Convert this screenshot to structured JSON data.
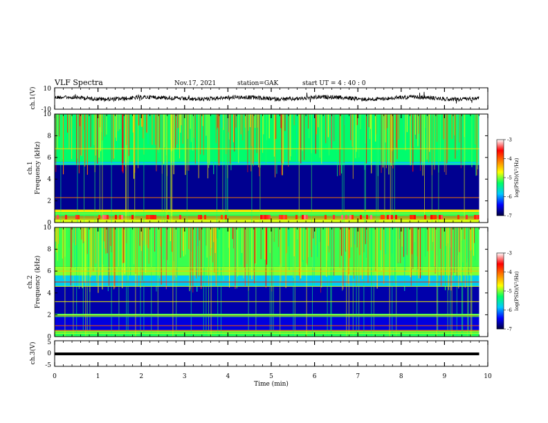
{
  "header": {
    "title": "VLF Spectra",
    "date": "Nov.17, 2021",
    "station": "station=GAK",
    "start_ut": "start  UT =  4 : 40 : 0"
  },
  "chart_data": {
    "type": "heatmap",
    "xlabel": "Time  (min)",
    "xlim": [
      0,
      10
    ],
    "xticks": [
      "0",
      "1",
      "2",
      "3",
      "4",
      "5",
      "6",
      "7",
      "8",
      "9",
      "10"
    ],
    "panels": [
      {
        "id": "ch1_waveform",
        "ylabel": "ch.1(V)",
        "ylim": [
          -10,
          10
        ],
        "yticks": [
          "10",
          "-10"
        ],
        "kind": "waveform"
      },
      {
        "id": "ch1_spectrogram",
        "ylabel_top": "ch.1",
        "ylabel": "Frequency  (kHz)",
        "ylim": [
          0,
          10
        ],
        "yticks": [
          "0",
          "2",
          "4",
          "6",
          "8",
          "10"
        ],
        "kind": "spectrogram"
      },
      {
        "id": "ch2_spectrogram",
        "ylabel_top": "ch.2",
        "ylabel": "Frequency  (kHz)",
        "ylim": [
          0,
          10
        ],
        "yticks": [
          "0",
          "2",
          "4",
          "6",
          "8",
          "10"
        ],
        "kind": "spectrogram"
      },
      {
        "id": "ch3_waveform",
        "ylabel": "ch.3(V)",
        "ylim": [
          -5,
          5
        ],
        "yticks": [
          "5",
          "0",
          "-5"
        ],
        "kind": "waveform"
      }
    ],
    "colorbar": {
      "label": "log(PSD)(V²/Hz)",
      "range": [
        -7,
        -3
      ],
      "ticks": [
        "-3",
        "-4",
        "-5",
        "-6",
        "-7"
      ],
      "colors": [
        "#000040",
        "#0000ff",
        "#00c8ff",
        "#00ff64",
        "#ffff00",
        "#ff8000",
        "#ff0000",
        "#ffffff"
      ]
    },
    "data_end_min": 9.8
  }
}
